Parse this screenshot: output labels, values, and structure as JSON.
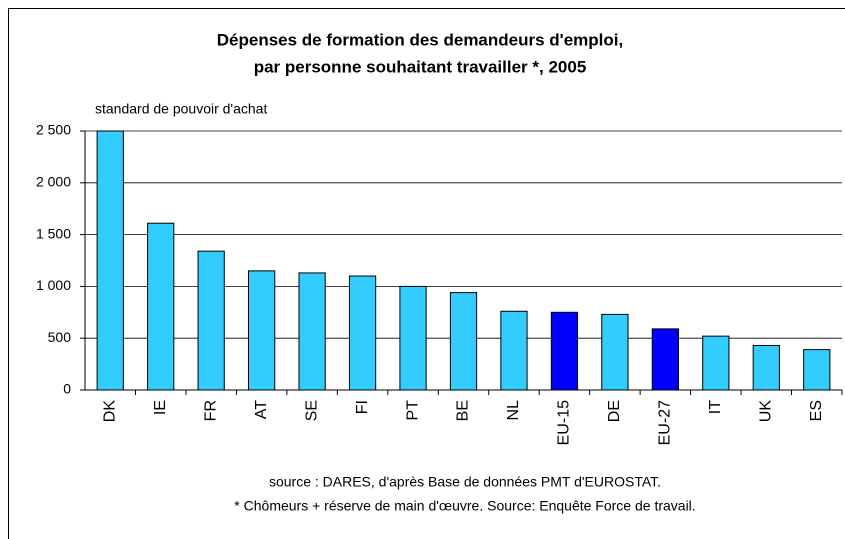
{
  "chart_data": {
    "type": "bar",
    "title": [
      "Dépenses de formation des demandeurs d'emploi,",
      "par personne souhaitant travailler *, 2005"
    ],
    "y_label": "standard de pouvoir d'achat",
    "categories": [
      "DK",
      "IE",
      "FR",
      "AT",
      "SE",
      "FI",
      "PT",
      "BE",
      "NL",
      "EU-15",
      "DE",
      "EU-27",
      "IT",
      "UK",
      "ES"
    ],
    "values": [
      2500,
      1610,
      1340,
      1150,
      1130,
      1100,
      1000,
      940,
      760,
      750,
      730,
      590,
      520,
      430,
      390
    ],
    "colors": [
      "#33ccff",
      "#33ccff",
      "#33ccff",
      "#33ccff",
      "#33ccff",
      "#33ccff",
      "#33ccff",
      "#33ccff",
      "#33ccff",
      "#0000ff",
      "#33ccff",
      "#0000ff",
      "#33ccff",
      "#33ccff",
      "#33ccff"
    ],
    "ylim": [
      0,
      2500
    ],
    "yticks": [
      0,
      500,
      {
        "value": 1000,
        "label": "1 000"
      },
      {
        "value": 1500,
        "label": "1 500"
      },
      {
        "value": 2000,
        "label": "2 000"
      },
      {
        "value": 2500,
        "label": "2 500"
      }
    ],
    "grid": true,
    "notes": [
      "source : DARES, d'après Base de données PMT d'EUROSTAT.",
      "* Chômeurs + réserve de main d'œuvre. Source: Enquête Force de travail."
    ]
  }
}
